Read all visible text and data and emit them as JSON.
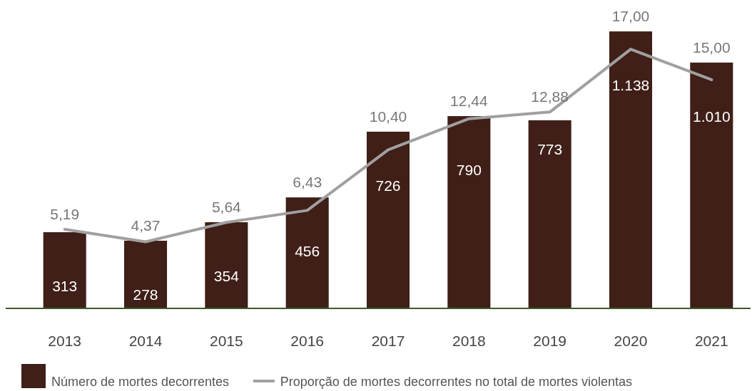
{
  "chart_data": {
    "type": "bar",
    "categories": [
      "2013",
      "2014",
      "2015",
      "2016",
      "2017",
      "2018",
      "2019",
      "2020",
      "2021"
    ],
    "series": [
      {
        "name": "Número de mortes decorrentes",
        "color": "#3f1f17",
        "values": [
          313,
          278,
          354,
          456,
          726,
          790,
          773,
          1138,
          1010
        ],
        "value_labels": [
          "313",
          "278",
          "354",
          "456",
          "726",
          "790",
          "773",
          "1.138",
          "1.010"
        ]
      },
      {
        "name": "Proporção de mortes decorrentes no total de mortes violentas",
        "type": "line",
        "axis": "y2",
        "color": "#a0a0a0",
        "values": [
          5.19,
          4.37,
          5.64,
          6.43,
          10.4,
          12.44,
          12.88,
          17.0,
          15.0
        ],
        "value_labels": [
          "5,19",
          "4,37",
          "5,64",
          "6,43",
          "10,40",
          "12,44",
          "12,88",
          "17,00",
          "15,00"
        ]
      }
    ],
    "tick_labels": "x",
    "legend": "bottom"
  }
}
